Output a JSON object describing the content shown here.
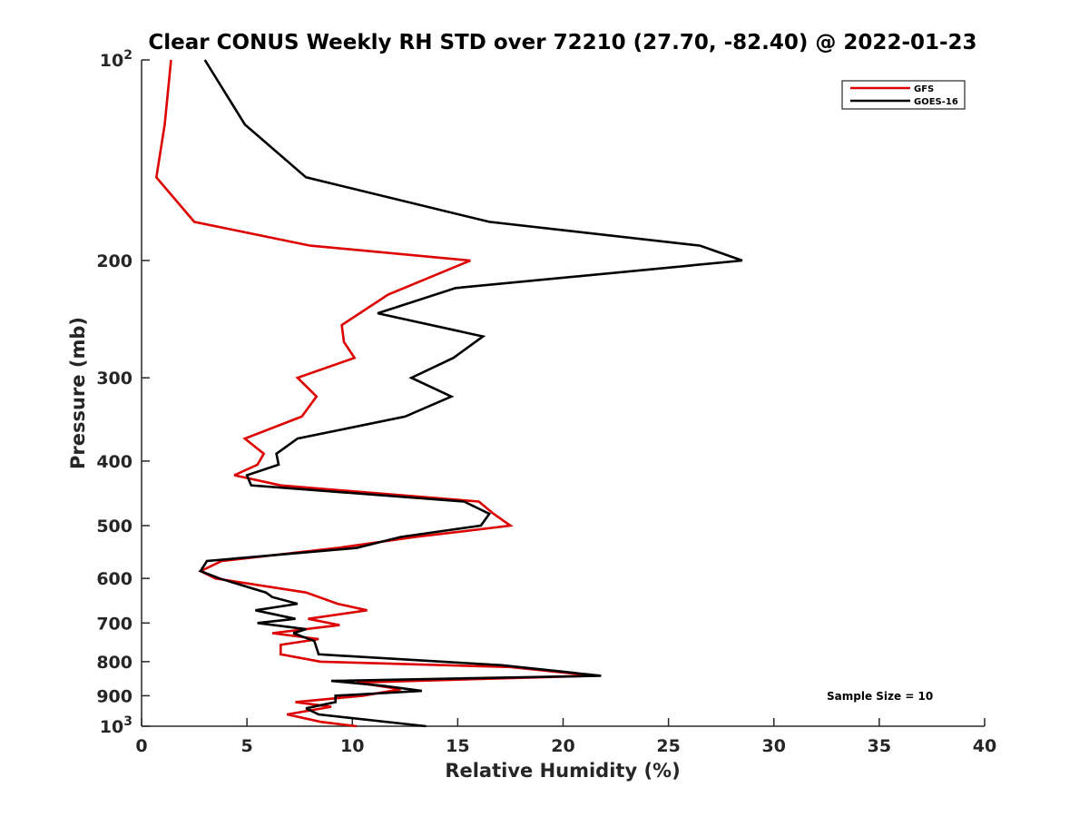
{
  "chart_data": {
    "type": "line",
    "title": "Clear CONUS Weekly RH STD over 72210 (27.70, -82.40) @ 2022-01-23",
    "xlabel": "Relative Humidity (%)",
    "ylabel": "Pressure (mb)",
    "xlim": [
      0,
      40
    ],
    "ylim": [
      100,
      1000
    ],
    "y_scale": "log",
    "y_reversed": true,
    "grid": false,
    "legend_placement": "top-right",
    "x_ticks": [
      0,
      5,
      10,
      15,
      20,
      25,
      30,
      35,
      40
    ],
    "x_tick_labels": [
      "0",
      "5",
      "10",
      "15",
      "20",
      "25",
      "30",
      "35",
      "40"
    ],
    "y_ticks": [
      {
        "value": 100,
        "base": "10",
        "exp": "2"
      },
      {
        "value": 200,
        "label": "200"
      },
      {
        "value": 300,
        "label": "300"
      },
      {
        "value": 400,
        "label": "400"
      },
      {
        "value": 500,
        "label": "500"
      },
      {
        "value": 600,
        "label": "600"
      },
      {
        "value": 700,
        "label": "700"
      },
      {
        "value": 800,
        "label": "800"
      },
      {
        "value": 900,
        "label": "900"
      },
      {
        "value": 1000,
        "base": "10",
        "exp": "3"
      }
    ],
    "series": [
      {
        "name": "GFS",
        "color": "#dd0000",
        "points": [
          [
            1.4,
            100
          ],
          [
            1.1,
            125
          ],
          [
            0.7,
            150
          ],
          [
            2.5,
            175
          ],
          [
            8.0,
            190
          ],
          [
            15.6,
            200
          ],
          [
            11.7,
            225
          ],
          [
            9.5,
            250
          ],
          [
            9.6,
            265
          ],
          [
            10.1,
            280
          ],
          [
            7.4,
            300
          ],
          [
            8.3,
            320
          ],
          [
            7.6,
            343
          ],
          [
            4.9,
            370
          ],
          [
            5.8,
            390
          ],
          [
            5.5,
            405
          ],
          [
            4.4,
            420
          ],
          [
            6.6,
            435
          ],
          [
            16.0,
            460
          ],
          [
            16.7,
            480
          ],
          [
            17.5,
            500
          ],
          [
            13.0,
            520
          ],
          [
            9.3,
            540
          ],
          [
            3.8,
            565
          ],
          [
            2.8,
            585
          ],
          [
            3.5,
            600
          ],
          [
            7.8,
            630
          ],
          [
            9.3,
            655
          ],
          [
            10.7,
            670
          ],
          [
            7.9,
            690
          ],
          [
            9.4,
            705
          ],
          [
            6.2,
            725
          ],
          [
            8.4,
            740
          ],
          [
            6.6,
            755
          ],
          [
            6.6,
            780
          ],
          [
            8.5,
            800
          ],
          [
            17.5,
            815
          ],
          [
            21.5,
            840
          ],
          [
            10.2,
            860
          ],
          [
            12.3,
            880
          ],
          [
            10.5,
            900
          ],
          [
            7.3,
            920
          ],
          [
            9.0,
            935
          ],
          [
            6.9,
            960
          ],
          [
            8.5,
            985
          ],
          [
            10.2,
            1000
          ]
        ]
      },
      {
        "name": "GOES-16",
        "color": "#000000",
        "points": [
          [
            3.0,
            100
          ],
          [
            4.9,
            125
          ],
          [
            7.8,
            150
          ],
          [
            16.5,
            175
          ],
          [
            26.5,
            190
          ],
          [
            28.5,
            200
          ],
          [
            14.9,
            220
          ],
          [
            11.2,
            240
          ],
          [
            16.2,
            260
          ],
          [
            14.8,
            280
          ],
          [
            12.8,
            300
          ],
          [
            14.7,
            320
          ],
          [
            12.5,
            343
          ],
          [
            7.4,
            370
          ],
          [
            6.4,
            390
          ],
          [
            6.5,
            405
          ],
          [
            5.0,
            420
          ],
          [
            5.2,
            435
          ],
          [
            15.3,
            460
          ],
          [
            16.5,
            480
          ],
          [
            16.1,
            500
          ],
          [
            12.3,
            520
          ],
          [
            10.2,
            540
          ],
          [
            3.1,
            565
          ],
          [
            2.8,
            585
          ],
          [
            3.7,
            600
          ],
          [
            5.9,
            630
          ],
          [
            6.2,
            640
          ],
          [
            7.4,
            655
          ],
          [
            5.4,
            670
          ],
          [
            7.3,
            690
          ],
          [
            5.5,
            700
          ],
          [
            7.8,
            715
          ],
          [
            7.2,
            725
          ],
          [
            8.2,
            745
          ],
          [
            8.4,
            780
          ],
          [
            17.1,
            810
          ],
          [
            21.8,
            840
          ],
          [
            9.0,
            855
          ],
          [
            11.5,
            870
          ],
          [
            13.3,
            885
          ],
          [
            9.2,
            900
          ],
          [
            9.2,
            920
          ],
          [
            7.8,
            940
          ],
          [
            8.4,
            960
          ],
          [
            13.5,
            1000
          ]
        ]
      }
    ],
    "annotation": "Sample Size = 10"
  }
}
